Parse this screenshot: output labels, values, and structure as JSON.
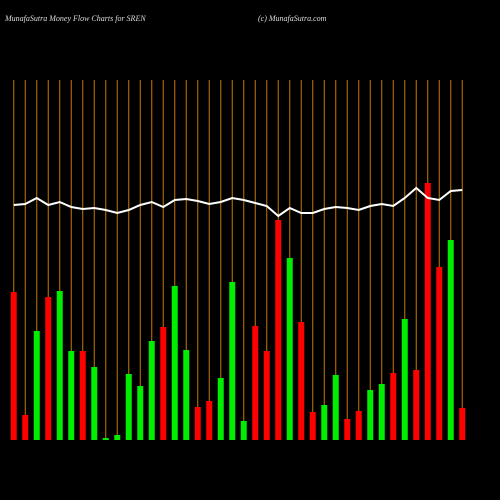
{
  "chart_data": {
    "type": "bar",
    "title": "MunafaSutra  Money Flow  Charts for SREN",
    "subtitle": "(c) MunafaSutra.com",
    "values": [
      148,
      25,
      109,
      143,
      149,
      89,
      89,
      73,
      2,
      5,
      66,
      54,
      99,
      113,
      154,
      90,
      33,
      39,
      62,
      158,
      19,
      114,
      89,
      220,
      182,
      118,
      28,
      35,
      65,
      21,
      29,
      50,
      56,
      67,
      121,
      70,
      257,
      173,
      200,
      32
    ],
    "colors": [
      "#ff0000",
      "#ff0000",
      "#00ee00",
      "#ff0000",
      "#00ee00",
      "#00ee00",
      "#ff0000",
      "#00ee00",
      "#00ee00",
      "#00ee00",
      "#00ee00",
      "#00ee00",
      "#00ee00",
      "#ff0000",
      "#00ee00",
      "#00ee00",
      "#ff0000",
      "#ff0000",
      "#00ee00",
      "#00ee00",
      "#00ee00",
      "#ff0000",
      "#ff0000",
      "#ff0000",
      "#00ee00",
      "#ff0000",
      "#ff0000",
      "#00ee00",
      "#00ee00",
      "#ff0000",
      "#ff0000",
      "#00ee00",
      "#00ee00",
      "#ff0000",
      "#00ee00",
      "#ff0000",
      "#ff0000",
      "#ff0000",
      "#00ee00",
      "#ff0000"
    ],
    "line": {
      "color": "#ffffff",
      "values": [
        235,
        236,
        242,
        235,
        238,
        233,
        231,
        232,
        230,
        227,
        230,
        235,
        238,
        233,
        240,
        241,
        239,
        236,
        238,
        242,
        240,
        237,
        234,
        224,
        232,
        227,
        227,
        231,
        233,
        232,
        230,
        234,
        236,
        234,
        242,
        252,
        242,
        240,
        249,
        250
      ]
    },
    "ylim": [
      0,
      260
    ],
    "grid": true,
    "grid_color": "#c87800"
  }
}
